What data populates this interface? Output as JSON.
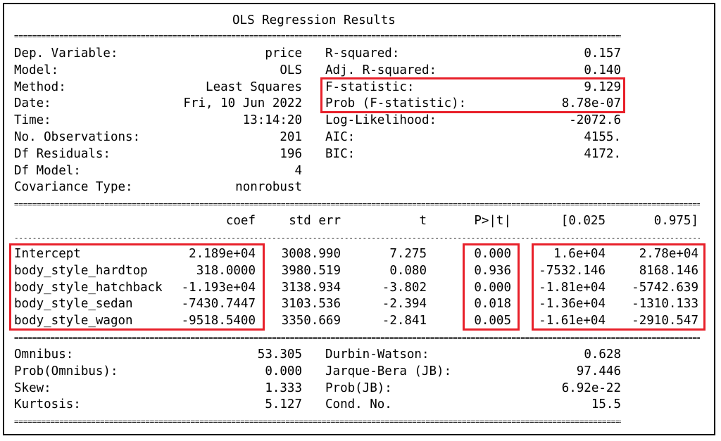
{
  "title": "OLS Regression Results",
  "colors": {
    "highlight": "#e8202a"
  },
  "summary_left": [
    {
      "label": "Dep. Variable:",
      "value": "price"
    },
    {
      "label": "Model:",
      "value": "OLS"
    },
    {
      "label": "Method:",
      "value": "Least Squares"
    },
    {
      "label": "Date:",
      "value": "Fri, 10 Jun 2022"
    },
    {
      "label": "Time:",
      "value": "13:14:20"
    },
    {
      "label": "No. Observations:",
      "value": "201"
    },
    {
      "label": "Df Residuals:",
      "value": "196"
    },
    {
      "label": "Df Model:",
      "value": "4"
    },
    {
      "label": "Covariance Type:",
      "value": "nonrobust"
    }
  ],
  "summary_right": [
    {
      "label": "R-squared:",
      "value": "0.157"
    },
    {
      "label": "Adj. R-squared:",
      "value": "0.140"
    },
    {
      "label": "F-statistic:",
      "value": "9.129"
    },
    {
      "label": "Prob (F-statistic):",
      "value": "8.78e-07"
    },
    {
      "label": "Log-Likelihood:",
      "value": "-2072.6"
    },
    {
      "label": "AIC:",
      "value": "4155."
    },
    {
      "label": "BIC:",
      "value": "4172."
    }
  ],
  "coef_header": [
    "coef",
    "std err",
    "t",
    "P>|t|",
    "[0.025",
    "0.975]"
  ],
  "coef_rows": [
    {
      "name": "Intercept",
      "coef": "2.189e+04",
      "std_err": "3008.990",
      "t": "7.275",
      "p": "0.000",
      "ci_low": "1.6e+04",
      "ci_high": "2.78e+04"
    },
    {
      "name": "body_style_hardtop",
      "coef": "318.0000",
      "std_err": "3980.519",
      "t": "0.080",
      "p": "0.936",
      "ci_low": "-7532.146",
      "ci_high": "8168.146"
    },
    {
      "name": "body_style_hatchback",
      "coef": "-1.193e+04",
      "std_err": "3138.934",
      "t": "-3.802",
      "p": "0.000",
      "ci_low": "-1.81e+04",
      "ci_high": "-5742.639"
    },
    {
      "name": "body_style_sedan",
      "coef": "-7430.7447",
      "std_err": "3103.536",
      "t": "-2.394",
      "p": "0.018",
      "ci_low": "-1.36e+04",
      "ci_high": "-1310.133"
    },
    {
      "name": "body_style_wagon",
      "coef": "-9518.5400",
      "std_err": "3350.669",
      "t": "-2.841",
      "p": "0.005",
      "ci_low": "-1.61e+04",
      "ci_high": "-2910.547"
    }
  ],
  "diag_left": [
    {
      "label": "Omnibus:",
      "value": "53.305"
    },
    {
      "label": "Prob(Omnibus):",
      "value": "0.000"
    },
    {
      "label": "Skew:",
      "value": "1.333"
    },
    {
      "label": "Kurtosis:",
      "value": "5.127"
    }
  ],
  "diag_right": [
    {
      "label": "Durbin-Watson:",
      "value": "0.628"
    },
    {
      "label": "Jarque-Bera (JB):",
      "value": "97.446"
    },
    {
      "label": "Prob(JB):",
      "value": "6.92e-22"
    },
    {
      "label": "Cond. No.",
      "value": "15.5"
    }
  ]
}
